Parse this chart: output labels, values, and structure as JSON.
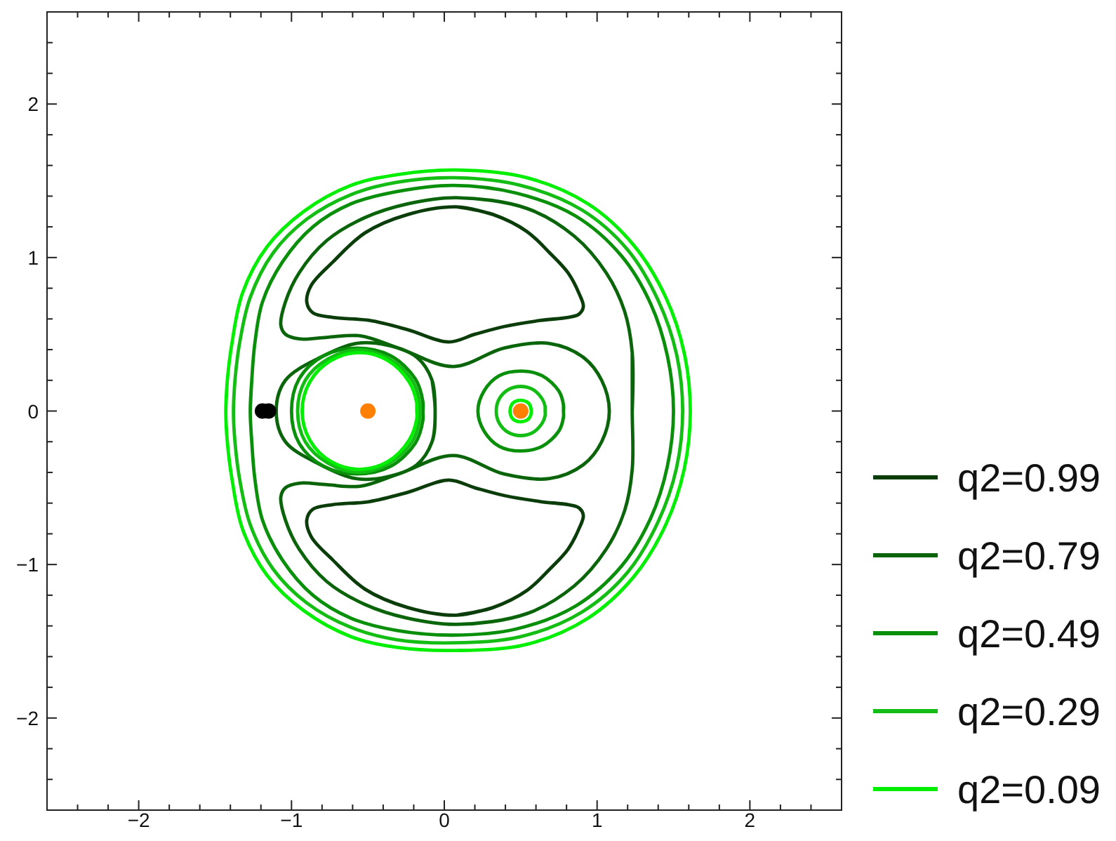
{
  "chart_data": {
    "type": "line",
    "xlim": [
      -2.6,
      2.6
    ],
    "ylim": [
      -2.6,
      2.6
    ],
    "xticks": [
      {
        "value": -2.4,
        "label": null
      },
      {
        "value": -2.2,
        "label": null
      },
      -2,
      {
        "value": -1.8,
        "label": null
      },
      {
        "value": -1.6,
        "label": null
      },
      {
        "value": -1.4,
        "label": null
      },
      {
        "value": -1.2,
        "label": null
      },
      -1,
      {
        "value": -0.8,
        "label": null
      },
      {
        "value": -0.6,
        "label": null
      },
      {
        "value": -0.4,
        "label": null
      },
      {
        "value": -0.2,
        "label": null
      },
      0,
      {
        "value": 0.2,
        "label": null
      },
      {
        "value": 0.4,
        "label": null
      },
      {
        "value": 0.6,
        "label": null
      },
      {
        "value": 0.8,
        "label": null
      },
      1,
      {
        "value": 1.2,
        "label": null
      },
      {
        "value": 1.4,
        "label": null
      },
      {
        "value": 1.6,
        "label": null
      },
      {
        "value": 1.8,
        "label": null
      },
      2,
      {
        "value": 2.2,
        "label": null
      },
      {
        "value": 2.4,
        "label": null
      }
    ],
    "yticks": [
      {
        "value": -2.4,
        "label": null
      },
      {
        "value": -2.2,
        "label": null
      },
      -2,
      {
        "value": -1.8,
        "label": null
      },
      {
        "value": -1.6,
        "label": null
      },
      {
        "value": -1.4,
        "label": null
      },
      {
        "value": -1.2,
        "label": null
      },
      -1,
      {
        "value": -0.8,
        "label": null
      },
      {
        "value": -0.6,
        "label": null
      },
      {
        "value": -0.4,
        "label": null
      },
      {
        "value": -0.2,
        "label": null
      },
      0,
      {
        "value": 0.2,
        "label": null
      },
      {
        "value": 0.4,
        "label": null
      },
      {
        "value": 0.6,
        "label": null
      },
      {
        "value": 0.8,
        "label": null
      },
      1,
      {
        "value": 1.2,
        "label": null
      },
      {
        "value": 1.4,
        "label": null
      },
      {
        "value": 1.6,
        "label": null
      },
      {
        "value": 1.8,
        "label": null
      },
      2,
      {
        "value": 2.2,
        "label": null
      },
      {
        "value": 2.4,
        "label": null
      }
    ],
    "legend": "bottom right",
    "series": [
      {
        "name": "q2=0.99",
        "color": "#0a3d0a",
        "x": [
          0.08,
          0.32,
          0.54,
          0.69,
          0.81,
          0.88,
          0.91,
          0.88,
          0.81,
          0.63,
          0.39,
          0.2,
          0.03,
          -0.24,
          -0.49,
          -0.73,
          -0.86,
          -0.9,
          -0.87,
          -0.73,
          -0.52,
          -0.24,
          0.08,
          0.32,
          null,
          0.08,
          0.32,
          0.54,
          0.69,
          0.81,
          0.88,
          0.91,
          0.88,
          0.81,
          0.63,
          0.39,
          0.2,
          0.03,
          -0.24,
          -0.49,
          -0.73,
          -0.86,
          -0.9,
          -0.87,
          -0.73,
          -0.52,
          -0.24,
          0.08,
          0.32
        ],
        "values": [
          1.33,
          1.28,
          1.17,
          1.03,
          0.9,
          0.77,
          0.68,
          0.63,
          0.61,
          0.59,
          0.55,
          0.5,
          0.45,
          0.53,
          0.59,
          0.61,
          0.64,
          0.71,
          0.82,
          0.97,
          1.16,
          1.28,
          1.33,
          1.28,
          null,
          -1.33,
          -1.28,
          -1.17,
          -1.03,
          -0.9,
          -0.77,
          -0.68,
          -0.63,
          -0.61,
          -0.59,
          -0.55,
          -0.5,
          -0.45,
          -0.53,
          -0.59,
          -0.61,
          -0.64,
          -0.71,
          -0.82,
          -0.97,
          -1.16,
          -1.28,
          -1.33,
          -1.28
        ]
      },
      {
        "name": "q2=0.79",
        "color": "#0a640a",
        "x": [
          -0.06,
          -0.08,
          -0.18,
          -0.38,
          -0.58,
          -0.81,
          -1.04,
          -1.1,
          -1.04,
          -0.81,
          -0.58,
          -0.38,
          -0.18,
          -0.08,
          -0.06,
          -0.08,
          null,
          1.23,
          1.23,
          1.18,
          1.06,
          0.85,
          0.54,
          0.08,
          -0.24,
          -0.52,
          -0.77,
          -0.95,
          -1.04,
          -1.07,
          -1.04,
          -0.95,
          -0.77,
          -0.55,
          -0.3,
          0.06,
          0.39,
          0.69,
          0.91,
          1.03,
          1.08,
          1.03,
          0.91,
          0.69,
          0.39,
          0.06,
          -0.3,
          -0.55,
          -0.77,
          -0.95,
          -1.04,
          -1.07,
          -1.04,
          -0.95,
          -0.77,
          -0.52,
          -0.24,
          0.08,
          0.54,
          0.85,
          1.06,
          1.18,
          1.23,
          1.23,
          1.23
        ],
        "values": [
          0,
          0.2,
          0.35,
          0.43,
          0.44,
          0.35,
          0.2,
          0,
          -0.2,
          -0.35,
          -0.44,
          -0.43,
          -0.35,
          -0.2,
          0,
          0.2,
          null,
          0,
          0.38,
          0.65,
          0.9,
          1.14,
          1.32,
          1.39,
          1.35,
          1.26,
          1.11,
          0.9,
          0.71,
          0.56,
          0.5,
          0.47,
          0.48,
          0.49,
          0.41,
          0.29,
          0.41,
          0.44,
          0.35,
          0.2,
          0,
          -0.2,
          -0.35,
          -0.44,
          -0.41,
          -0.29,
          -0.41,
          -0.49,
          -0.48,
          -0.47,
          -0.5,
          -0.56,
          -0.71,
          -0.9,
          -1.11,
          -1.26,
          -1.35,
          -1.39,
          -1.32,
          -1.14,
          -0.9,
          -0.65,
          -0.38,
          0,
          0.38
        ]
      },
      {
        "name": "q2=0.49",
        "color": "#0a8f0a",
        "x": [
          -1.27,
          -1.26,
          -1.24,
          -1.19,
          -1.06,
          -0.86,
          -0.61,
          -0.31,
          0.06,
          0.47,
          0.86,
          1.16,
          1.35,
          1.46,
          1.5,
          1.46,
          1.35,
          1.16,
          0.86,
          0.47,
          0.06,
          -0.31,
          -0.61,
          -0.86,
          -1.06,
          -1.19,
          -1.24,
          -1.26,
          -1.27,
          -1.26,
          null,
          -0.14,
          -0.14,
          -0.19,
          -0.35,
          -0.57,
          -0.79,
          -0.95,
          -1.0,
          -0.95,
          -0.79,
          -0.57,
          -0.35,
          -0.19,
          -0.14,
          -0.14,
          -0.14,
          null,
          0.78,
          0.78,
          0.75,
          0.64,
          0.5,
          0.36,
          0.26,
          0.22,
          0.26,
          0.36,
          0.5,
          0.64,
          0.75,
          0.78,
          0.78,
          0.78
        ],
        "values": [
          0,
          0.2,
          0.44,
          0.71,
          0.97,
          1.2,
          1.35,
          1.43,
          1.47,
          1.42,
          1.27,
          1.01,
          0.7,
          0.36,
          0,
          -0.36,
          -0.7,
          -1.01,
          -1.27,
          -1.42,
          -1.46,
          -1.43,
          -1.35,
          -1.2,
          -0.97,
          -0.71,
          -0.44,
          -0.2,
          0,
          0.2,
          null,
          0,
          0.06,
          0.21,
          0.36,
          0.41,
          0.36,
          0.21,
          0,
          -0.21,
          -0.36,
          -0.41,
          -0.36,
          -0.21,
          -0.06,
          0,
          0.06,
          null,
          0,
          0.04,
          0.13,
          0.23,
          0.26,
          0.23,
          0.13,
          0,
          -0.13,
          -0.23,
          -0.26,
          -0.23,
          -0.13,
          -0.04,
          0,
          0.04
        ]
      },
      {
        "name": "q2=0.29",
        "color": "#14bd14",
        "x": [
          -1.38,
          -1.37,
          -1.34,
          -1.27,
          -1.12,
          -0.9,
          -0.61,
          -0.31,
          0.07,
          0.5,
          0.9,
          1.2,
          1.4,
          1.52,
          1.56,
          1.52,
          1.4,
          1.2,
          0.9,
          0.5,
          0.07,
          -0.31,
          -0.61,
          -0.9,
          -1.12,
          -1.27,
          -1.34,
          -1.37,
          -1.38,
          -1.37,
          null,
          -0.16,
          -0.16,
          -0.21,
          -0.36,
          -0.56,
          -0.76,
          -0.91,
          -0.96,
          -0.91,
          -0.76,
          -0.56,
          -0.36,
          -0.21,
          -0.16,
          -0.16,
          -0.16,
          null,
          0.66,
          0.66,
          0.64,
          0.58,
          0.5,
          0.42,
          0.36,
          0.34,
          0.36,
          0.42,
          0.5,
          0.58,
          0.64,
          0.66,
          0.66,
          0.66
        ],
        "values": [
          0,
          0.2,
          0.44,
          0.74,
          1.03,
          1.25,
          1.41,
          1.49,
          1.52,
          1.47,
          1.31,
          1.05,
          0.72,
          0.37,
          0,
          -0.37,
          -0.72,
          -1.05,
          -1.31,
          -1.47,
          -1.51,
          -1.49,
          -1.41,
          -1.25,
          -1.03,
          -0.74,
          -0.44,
          -0.2,
          0,
          0.2,
          null,
          0,
          0.05,
          0.2,
          0.34,
          0.4,
          0.34,
          0.2,
          0,
          -0.2,
          -0.34,
          -0.4,
          -0.34,
          -0.2,
          -0.05,
          0,
          0.05,
          null,
          0,
          0.03,
          0.08,
          0.14,
          0.16,
          0.14,
          0.08,
          0,
          -0.08,
          -0.14,
          -0.16,
          -0.14,
          -0.08,
          -0.03,
          0,
          0.03
        ]
      },
      {
        "name": "q2=0.09",
        "color": "#00ee00",
        "x": [
          -1.43,
          -1.42,
          -1.39,
          -1.32,
          -1.16,
          -0.92,
          -0.61,
          -0.31,
          0.08,
          0.54,
          0.94,
          1.24,
          1.45,
          1.57,
          1.61,
          1.57,
          1.45,
          1.24,
          0.94,
          0.54,
          0.08,
          -0.31,
          -0.61,
          -0.92,
          -1.16,
          -1.32,
          -1.39,
          -1.42,
          -1.43,
          -1.42,
          null,
          -0.18,
          -0.18,
          -0.23,
          -0.37,
          -0.55,
          -0.74,
          -0.88,
          -0.93,
          -0.88,
          -0.74,
          -0.55,
          -0.37,
          -0.23,
          -0.18,
          -0.18,
          -0.18,
          null,
          0.57,
          0.56,
          0.54,
          0.5,
          0.46,
          0.44,
          0.43,
          0.44,
          0.46,
          0.5,
          0.54,
          0.56,
          0.57,
          0.56
        ],
        "values": [
          0,
          0.2,
          0.44,
          0.77,
          1.07,
          1.3,
          1.47,
          1.54,
          1.57,
          1.52,
          1.35,
          1.08,
          0.74,
          0.38,
          0,
          -0.38,
          -0.74,
          -1.08,
          -1.35,
          -1.52,
          -1.56,
          -1.54,
          -1.47,
          -1.3,
          -1.07,
          -0.77,
          -0.44,
          -0.2,
          0,
          0.2,
          null,
          0,
          0.05,
          0.19,
          0.33,
          0.38,
          0.33,
          0.19,
          0,
          -0.19,
          -0.33,
          -0.38,
          -0.33,
          -0.19,
          -0.05,
          0,
          0.05,
          null,
          0,
          0.04,
          0.06,
          0.07,
          0.06,
          0.04,
          0,
          -0.04,
          -0.06,
          -0.07,
          -0.06,
          -0.04,
          0,
          0.04
        ]
      },
      {
        "type": "scatter",
        "marker": "circle",
        "color": "#ff8000",
        "x": [
          -0.5,
          0.5
        ],
        "values": [
          0,
          0
        ]
      },
      {
        "type": "scatter",
        "marker": "circle",
        "color": "#000000",
        "x": [
          -1.19,
          -1.15
        ],
        "values": [
          0,
          0
        ]
      }
    ]
  }
}
